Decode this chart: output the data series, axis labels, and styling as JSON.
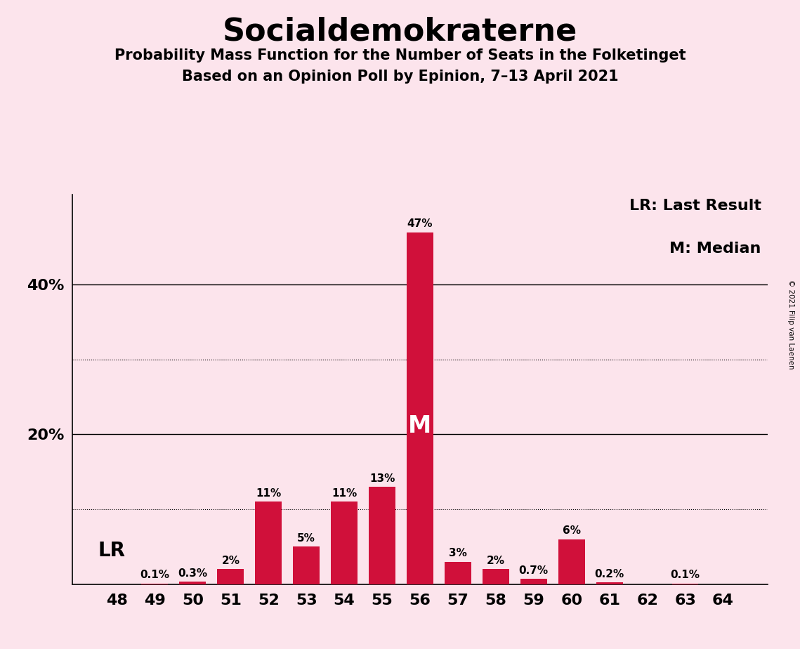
{
  "title": "Socialdemokraterne",
  "subtitle1": "Probability Mass Function for the Number of Seats in the Folketinget",
  "subtitle2": "Based on an Opinion Poll by Epinion, 7–13 April 2021",
  "copyright": "© 2021 Filip van Laenen",
  "seats": [
    48,
    49,
    50,
    51,
    52,
    53,
    54,
    55,
    56,
    57,
    58,
    59,
    60,
    61,
    62,
    63,
    64
  ],
  "probabilities": [
    0.0,
    0.1,
    0.3,
    2.0,
    11.0,
    5.0,
    11.0,
    13.0,
    47.0,
    3.0,
    2.0,
    0.7,
    6.0,
    0.2,
    0.0,
    0.1,
    0.0
  ],
  "bar_color": "#d0103a",
  "background_color": "#fce4ec",
  "median_seat": 56,
  "last_result_seat": 48,
  "major_yticks": [
    20,
    40
  ],
  "minor_yticks": [
    10,
    30
  ],
  "legend_text_line1": "LR: Last Result",
  "legend_text_line2": "M: Median",
  "lr_label": "LR",
  "median_label": "M",
  "ylim": [
    0,
    52
  ],
  "label_fontsize": 11,
  "tick_fontsize": 16,
  "title_fontsize": 32,
  "subtitle_fontsize": 15
}
